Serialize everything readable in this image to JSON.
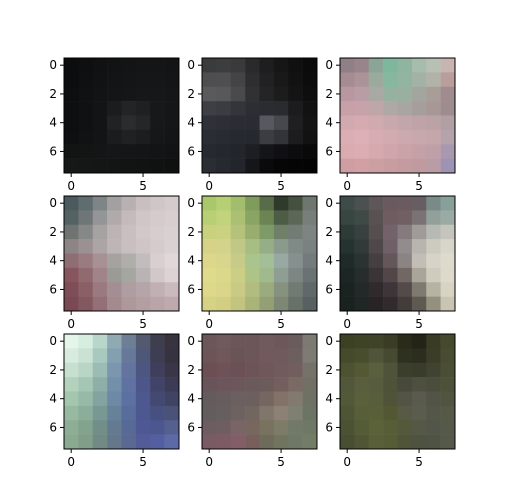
{
  "chart_data": {
    "type": "heatmap",
    "description_grid": "3x3 grid of 8x8 RGB pixel images",
    "axis": {
      "xticks": [
        0,
        5
      ],
      "yticks": [
        0,
        2,
        4,
        6
      ],
      "xlim": [
        -0.5,
        7.5
      ],
      "ylim": [
        7.5,
        -0.5
      ]
    },
    "panels": [
      {
        "name": "panel-1",
        "pixels": [
          [
            "#0b0d0e",
            "#0d0f10",
            "#0f1112",
            "#111314",
            "#121415",
            "#131516",
            "#131516",
            "#121415"
          ],
          [
            "#0b0d0e",
            "#0e1011",
            "#101213",
            "#121415",
            "#131516",
            "#141617",
            "#141617",
            "#131516"
          ],
          [
            "#0c0e0f",
            "#0f1112",
            "#111314",
            "#131516",
            "#141617",
            "#151718",
            "#151718",
            "#141617"
          ],
          [
            "#0c0e0f",
            "#0f1112",
            "#121415",
            "#1a1c1d",
            "#222425",
            "#1e2021",
            "#161819",
            "#141617"
          ],
          [
            "#0c0e0f",
            "#0f1112",
            "#121415",
            "#202223",
            "#2a2c2d",
            "#242627",
            "#171919",
            "#141617"
          ],
          [
            "#0d0f10",
            "#101213",
            "#121415",
            "#1a1c1d",
            "#1f2122",
            "#1b1d1e",
            "#151718",
            "#131516"
          ],
          [
            "#121414",
            "#131515",
            "#131516",
            "#141617",
            "#141617",
            "#131516",
            "#121415",
            "#111314"
          ],
          [
            "#161818",
            "#151717",
            "#141616",
            "#131515",
            "#121414",
            "#111313",
            "#101212",
            "#0f1111"
          ]
        ]
      },
      {
        "name": "panel-2",
        "pixels": [
          [
            "#3a3b3d",
            "#3c3d3f",
            "#3a3a3c",
            "#2a2a2c",
            "#1e1e20",
            "#161617",
            "#101011",
            "#0b0b0c"
          ],
          [
            "#4e4e50",
            "#4f4f51",
            "#444446",
            "#2e2e30",
            "#212123",
            "#191919",
            "#121213",
            "#0c0c0d"
          ],
          [
            "#5a5a5c",
            "#58585a",
            "#4a4a4c",
            "#313133",
            "#242426",
            "#1c1c1d",
            "#141415",
            "#0e0e0f"
          ],
          [
            "#3d3f45",
            "#3a3c42",
            "#33353b",
            "#2c2e33",
            "#2b2c31",
            "#2a2b2f",
            "#1c1c1e",
            "#121213"
          ],
          [
            "#2e3138",
            "#2c2f36",
            "#2a2d34",
            "#2a2c33",
            "#575860",
            "#47484e",
            "#1f1f22",
            "#141415"
          ],
          [
            "#2a2d34",
            "#282b32",
            "#262930",
            "#25282e",
            "#3b3d43",
            "#333439",
            "#1c1c1f",
            "#121213"
          ],
          [
            "#262930",
            "#24272e",
            "#22252c",
            "#1c1e24",
            "#141519",
            "#101013",
            "#0c0c0e",
            "#09090a"
          ],
          [
            "#2a2d34",
            "#262930",
            "#22252b",
            "#14161a",
            "#0a0a0c",
            "#060607",
            "#050506",
            "#040405"
          ]
        ]
      },
      {
        "name": "panel-3",
        "pixels": [
          [
            "#8f7f86",
            "#98848a",
            "#8aa596",
            "#7eb79d",
            "#8fb4a0",
            "#a6bdab",
            "#b6c1b3",
            "#c9b5b0"
          ],
          [
            "#a58c93",
            "#aa9499",
            "#9aaa9c",
            "#88b7a0",
            "#92b5a2",
            "#a2b3a5",
            "#b3b2a8",
            "#b89e9c"
          ],
          [
            "#b897a0",
            "#b89da4",
            "#a8a9a2",
            "#96b1a0",
            "#99b0a0",
            "#a2a69e",
            "#a99d98",
            "#a08c8e"
          ],
          [
            "#c7a0a8",
            "#c8a2aa",
            "#bfa6a8",
            "#b0a8a4",
            "#a8a6a2",
            "#a69e9c",
            "#a79896",
            "#9e8d90"
          ],
          [
            "#d3a9b0",
            "#d5aab1",
            "#d1aab0",
            "#c9a8ad",
            "#c2a6aa",
            "#bea4a8",
            "#bba2a6",
            "#b0a0a4"
          ],
          [
            "#dbaeb4",
            "#ddb0b6",
            "#d7adb3",
            "#d2abb0",
            "#cca9ae",
            "#c8a8ad",
            "#c4a6ab",
            "#b5a2ab"
          ],
          [
            "#daacb1",
            "#dcaeb3",
            "#d5a9ae",
            "#d0a6ab",
            "#caa3a8",
            "#c5a1a7",
            "#bfa0a8",
            "#a899b0"
          ],
          [
            "#cf9ea2",
            "#d2a0a4",
            "#cca0a2",
            "#c89da0",
            "#c49ca0",
            "#bf9ba0",
            "#b89ca6",
            "#9e93b3"
          ]
        ]
      },
      {
        "name": "panel-4",
        "pixels": [
          [
            "#4b5a5e",
            "#5f6d70",
            "#7f8587",
            "#a2a0a1",
            "#b8b1b2",
            "#c9bfc0",
            "#cfc6c7",
            "#d4cbcc"
          ],
          [
            "#556264",
            "#6e7677",
            "#949596",
            "#b1aaab",
            "#c4babb",
            "#d0c6c7",
            "#d4cbcc",
            "#d7cecf"
          ],
          [
            "#6f7473",
            "#868887",
            "#a6a2a2",
            "#bcb3b4",
            "#cabfc0",
            "#d2c8c9",
            "#d6cdce",
            "#d9d0d1"
          ],
          [
            "#8c8485",
            "#9b9192",
            "#ada4a5",
            "#beb5b6",
            "#c9bfc0",
            "#cfc5c6",
            "#d4cbcc",
            "#dad1d2"
          ],
          [
            "#8f6e73",
            "#9a7c80",
            "#a89194",
            "#a6a2a0",
            "#b0aeab",
            "#c2bdbc",
            "#d8cfd0",
            "#e0d7d8"
          ],
          [
            "#86555e",
            "#916a70",
            "#a08489",
            "#9a9b95",
            "#a4a6a0",
            "#b9b3b3",
            "#d2c7c9",
            "#ddd3d5"
          ],
          [
            "#7f4d57",
            "#8a5f66",
            "#9a7a80",
            "#a38f93",
            "#ae9ea1",
            "#b6a5a8",
            "#c1b0b3",
            "#cbbabd"
          ],
          [
            "#7a4a54",
            "#835861",
            "#946f77",
            "#a38a8f",
            "#ae989c",
            "#b39ea2",
            "#b9a4a8",
            "#bea9ad"
          ]
        ]
      },
      {
        "name": "panel-5",
        "pixels": [
          [
            "#aac86b",
            "#b6cf74",
            "#a2be6c",
            "#7f9c5c",
            "#586c4a",
            "#2f3a2c",
            "#46503f",
            "#6e7670"
          ],
          [
            "#b8cf74",
            "#c1d37c",
            "#acc073",
            "#8aa463",
            "#6a8452",
            "#4d5c45",
            "#5d6758",
            "#787f7b"
          ],
          [
            "#c9d07e",
            "#cad281",
            "#b5c27b",
            "#98ad6e",
            "#7e9a66",
            "#6f7f68",
            "#717c74",
            "#7d8481"
          ],
          [
            "#d6d389",
            "#d3d38c",
            "#bfc985",
            "#a8bd82",
            "#96ae85",
            "#8a9a8c",
            "#7f8a87",
            "#7a8181"
          ],
          [
            "#dcd78b",
            "#d8d68d",
            "#c6cc88",
            "#a9c48d",
            "#a2bf98",
            "#98a8a2",
            "#86918f",
            "#747b7c"
          ],
          [
            "#dedb8a",
            "#dcd88b",
            "#cbcf86",
            "#aec487",
            "#a0b98d",
            "#8f9e93",
            "#7c8784",
            "#6b7273"
          ],
          [
            "#ded88a",
            "#dad58a",
            "#c9cb84",
            "#b0bd7f",
            "#9aab7f",
            "#86927f",
            "#717b74",
            "#60696a"
          ],
          [
            "#d6d283",
            "#d2cf84",
            "#c3c57f",
            "#aab478",
            "#93a075",
            "#7d8774",
            "#687068",
            "#586061"
          ]
        ]
      },
      {
        "name": "panel-6",
        "pixels": [
          [
            "#3f4b48",
            "#4a5150",
            "#5e5658",
            "#6a595e",
            "#6b5b60",
            "#665e63",
            "#7a8a88",
            "#87a19a"
          ],
          [
            "#384642",
            "#3f4946",
            "#5a5153",
            "#6f5c61",
            "#715f64",
            "#7a7375",
            "#92a09c",
            "#9aaba3"
          ],
          [
            "#2d3a36",
            "#384140",
            "#574e50",
            "#74626a",
            "#857a7e",
            "#a09b99",
            "#b7bab4",
            "#c6c5bd"
          ],
          [
            "#253330",
            "#323a39",
            "#50474a",
            "#6f5f66",
            "#938c8e",
            "#b8b4ae",
            "#cdcac0",
            "#d8d5ca"
          ],
          [
            "#1f2b29",
            "#2b3332",
            "#463f42",
            "#63575c",
            "#8a8583",
            "#c2beb5",
            "#d7d3c8",
            "#dedbcd"
          ],
          [
            "#1c2624",
            "#262d2c",
            "#3b3437",
            "#524649",
            "#716864",
            "#aaa59a",
            "#cfcbbd",
            "#dedacb"
          ],
          [
            "#1a2321",
            "#222928",
            "#302a2d",
            "#3e3538",
            "#524b4a",
            "#7f7a70",
            "#b7b3a3",
            "#d8d4c3"
          ],
          [
            "#1a2220",
            "#1f2625",
            "#282325",
            "#322b2e",
            "#423c3b",
            "#5e5a52",
            "#939080",
            "#c9c5b2"
          ]
        ]
      },
      {
        "name": "panel-7",
        "pixels": [
          [
            "#e4f5ea",
            "#d7ede0",
            "#b8d6cb",
            "#90a9b3",
            "#6e7f95",
            "#535a70",
            "#3f3e4e",
            "#38333f"
          ],
          [
            "#d7ebde",
            "#c9e2d4",
            "#a9c9c0",
            "#83a0b0",
            "#67799a",
            "#4f5778",
            "#3d3d54",
            "#36323f"
          ],
          [
            "#c7dfcf",
            "#b8d5c5",
            "#9bbcb5",
            "#7b96ae",
            "#63749f",
            "#4d5581",
            "#3f3f5d",
            "#3a3648"
          ],
          [
            "#b4d1be",
            "#a6c6b5",
            "#8eaeaa",
            "#7390aa",
            "#5f72a2",
            "#4c5689",
            "#414468",
            "#3c3b55"
          ],
          [
            "#a4c5ae",
            "#96baa7",
            "#82a39f",
            "#6d89a5",
            "#5c70a1",
            "#4c588e",
            "#434972",
            "#404364"
          ],
          [
            "#97b9a0",
            "#8aae99",
            "#789893",
            "#67819b",
            "#596d9c",
            "#4d5891",
            "#475080",
            "#4a5377"
          ],
          [
            "#8dad94",
            "#82a38e",
            "#728e89",
            "#637a91",
            "#576996",
            "#4f5894",
            "#4c5790",
            "#55608f"
          ],
          [
            "#8aa98f",
            "#809f88",
            "#728a84",
            "#65788b",
            "#5b6892",
            "#535c99",
            "#535fa0",
            "#5d6aa8"
          ]
        ]
      },
      {
        "name": "panel-8",
        "pixels": [
          [
            "#6b5659",
            "#705a5d",
            "#6d5659",
            "#6b575a",
            "#705a5e",
            "#6e575a",
            "#6a5c5d",
            "#7d7a71"
          ],
          [
            "#6c5457",
            "#6f575a",
            "#6a5456",
            "#6c5659",
            "#72595d",
            "#705a5d",
            "#6e5f5f",
            "#7d7b73"
          ],
          [
            "#6b4f55",
            "#6e5258",
            "#6b5055",
            "#6c5458",
            "#6f575a",
            "#725b5c",
            "#725e5d",
            "#777269"
          ],
          [
            "#68545a",
            "#6c565b",
            "#6c585b",
            "#6a5a5b",
            "#6b5c5b",
            "#755f5e",
            "#7a6964",
            "#726f65"
          ],
          [
            "#645b5d",
            "#675d5e",
            "#6b5f5f",
            "#6b605e",
            "#75675f",
            "#827366",
            "#827a6e",
            "#6e7265"
          ],
          [
            "#635d5d",
            "#665f5e",
            "#6d625f",
            "#726661",
            "#81766b",
            "#8c8174",
            "#7e8072",
            "#6c7464"
          ],
          [
            "#6b5d60",
            "#6f5e61",
            "#7a6566",
            "#77675f",
            "#78725f",
            "#7d7c67",
            "#72786a",
            "#6e7865"
          ],
          [
            "#7a5a63",
            "#7c5b64",
            "#835e67",
            "#785f5e",
            "#6f6b5a",
            "#71755f",
            "#6f7866",
            "#737c66"
          ]
        ]
      },
      {
        "name": "panel-9",
        "pixels": [
          [
            "#3c4124",
            "#3e4326",
            "#3f4427",
            "#3a3d23",
            "#2a2b19",
            "#242416",
            "#3a3b25",
            "#464a2d"
          ],
          [
            "#454a2b",
            "#484e2d",
            "#50553a",
            "#464a31",
            "#2f3120",
            "#2c2d1d",
            "#3b3d28",
            "#484c30"
          ],
          [
            "#4d5231",
            "#545934",
            "#5a5f40",
            "#4f533a",
            "#3b3e2b",
            "#393b2b",
            "#40432f",
            "#4a4e34"
          ],
          [
            "#51573a",
            "#585e3e",
            "#575c3e",
            "#4e5238",
            "#47493a",
            "#4e4e41",
            "#4b4d3c",
            "#4d5138"
          ],
          [
            "#525939",
            "#5a603c",
            "#585d3c",
            "#4f5337",
            "#545446",
            "#5a5a4e",
            "#535447",
            "#51553f"
          ],
          [
            "#4e5535",
            "#575e38",
            "#596039",
            "#535833",
            "#585a45",
            "#5a5c4d",
            "#545648",
            "#555946"
          ],
          [
            "#4b5233",
            "#545b37",
            "#5b623a",
            "#575d36",
            "#55593c",
            "#555845",
            "#525648",
            "#56594a"
          ],
          [
            "#474e31",
            "#505635",
            "#585f39",
            "#555c36",
            "#50553a",
            "#4f5240",
            "#4f5343",
            "#56594a"
          ]
        ]
      }
    ]
  }
}
